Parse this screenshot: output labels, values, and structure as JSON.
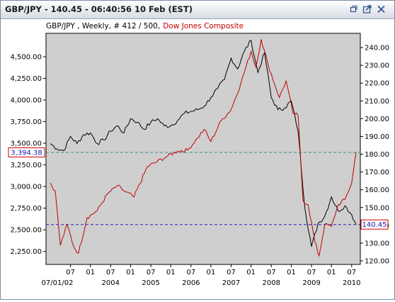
{
  "window": {
    "title": "GBP/JPY - 140.45 - 06:40:56  10 Feb (EST)",
    "buttons": [
      "restore-icon",
      "popout-icon",
      "close-icon"
    ]
  },
  "chart_data": {
    "type": "line",
    "legend": {
      "prefix": "GBP/JPY , Weekly, # 412 / 500,",
      "overlay_name": "Dow Jones Composite",
      "prefix_color": "#000000",
      "overlay_color": "#c00000"
    },
    "background": "#cfcfcf",
    "grid": false,
    "x_tick_labels": [
      "07",
      "01",
      "07",
      "01",
      "07",
      "01",
      "07",
      "01",
      "07",
      "01",
      "07",
      "01",
      "07",
      "01",
      "07",
      "01"
    ],
    "x_year_labels": [
      "07/01/02",
      "2004",
      "2005",
      "2006",
      "2007",
      "2008",
      "2009",
      "2010"
    ],
    "x_range": [
      "2002-07-01",
      "2010-02-10"
    ],
    "left_axis": {
      "series": "Dow Jones Composite",
      "ylim": [
        2100,
        4770
      ],
      "ticks": [
        "4,500.00",
        "4,250.00",
        "4,000.00",
        "3,750.00",
        "3,500.00",
        "3,250.00",
        "3,000.00",
        "2,750.00",
        "2,500.00",
        "2,250.00"
      ],
      "tick_values": [
        4500,
        4250,
        4000,
        3750,
        3500,
        3250,
        3000,
        2750,
        2500,
        2250
      ],
      "marker": "3,394.38",
      "marker_value": 3394.38
    },
    "right_axis": {
      "series": "GBP/JPY",
      "ylim": [
        118,
        248
      ],
      "ticks": [
        "240.00",
        "230.00",
        "220.00",
        "210.00",
        "200.00",
        "190.00",
        "180.00",
        "170.00",
        "160.00",
        "150.00",
        "140.00",
        "130.00",
        "120.00"
      ],
      "tick_values": [
        240,
        230,
        220,
        210,
        200,
        190,
        180,
        170,
        160,
        150,
        140,
        130,
        120
      ],
      "marker": "140.45",
      "marker_value": 140.45
    },
    "reference_lines": [
      {
        "axis": "left",
        "value": 3394.38,
        "color": "#3a8a8a",
        "style": "dashed"
      },
      {
        "axis": "right",
        "value": 140.45,
        "color": "#2020c8",
        "style": "dashed"
      }
    ],
    "series": [
      {
        "name": "GBP/JPY",
        "color": "#000000",
        "axis": "right",
        "points": [
          [
            "2002-07-01",
            186
          ],
          [
            "2002-09-01",
            183
          ],
          [
            "2002-11-01",
            182
          ],
          [
            "2003-01-01",
            190
          ],
          [
            "2003-03-01",
            186
          ],
          [
            "2003-05-01",
            191
          ],
          [
            "2003-07-01",
            192
          ],
          [
            "2003-09-01",
            186
          ],
          [
            "2003-11-01",
            188
          ],
          [
            "2004-01-01",
            193
          ],
          [
            "2004-03-01",
            196
          ],
          [
            "2004-05-01",
            192
          ],
          [
            "2004-07-01",
            200
          ],
          [
            "2004-09-01",
            198
          ],
          [
            "2004-11-01",
            194
          ],
          [
            "2005-01-01",
            198
          ],
          [
            "2005-03-01",
            200
          ],
          [
            "2005-05-01",
            196
          ],
          [
            "2005-07-01",
            196
          ],
          [
            "2005-09-01",
            199
          ],
          [
            "2005-11-01",
            203
          ],
          [
            "2006-01-01",
            204
          ],
          [
            "2006-03-01",
            205
          ],
          [
            "2006-05-01",
            207
          ],
          [
            "2006-07-01",
            212
          ],
          [
            "2006-09-01",
            217
          ],
          [
            "2006-11-01",
            222
          ],
          [
            "2007-01-01",
            234
          ],
          [
            "2007-03-01",
            228
          ],
          [
            "2007-05-01",
            238
          ],
          [
            "2007-07-01",
            244
          ],
          [
            "2007-09-01",
            226
          ],
          [
            "2007-11-01",
            237
          ],
          [
            "2008-01-01",
            212
          ],
          [
            "2008-03-01",
            205
          ],
          [
            "2008-05-01",
            206
          ],
          [
            "2008-07-01",
            210
          ],
          [
            "2008-09-01",
            193
          ],
          [
            "2008-11-01",
            150
          ],
          [
            "2009-01-01",
            128
          ],
          [
            "2009-03-01",
            141
          ],
          [
            "2009-05-01",
            145
          ],
          [
            "2009-07-01",
            156
          ],
          [
            "2009-09-01",
            148
          ],
          [
            "2009-11-01",
            151
          ],
          [
            "2010-01-01",
            146
          ],
          [
            "2010-02-10",
            140.45
          ]
        ]
      },
      {
        "name": "Dow Jones Composite",
        "color": "#c00000",
        "axis": "left",
        "points": [
          [
            "2002-07-01",
            3040
          ],
          [
            "2002-08-15",
            2950
          ],
          [
            "2002-10-01",
            2320
          ],
          [
            "2002-12-01",
            2560
          ],
          [
            "2003-02-01",
            2300
          ],
          [
            "2003-03-15",
            2230
          ],
          [
            "2003-06-01",
            2640
          ],
          [
            "2003-09-01",
            2720
          ],
          [
            "2003-12-01",
            2910
          ],
          [
            "2004-03-01",
            3010
          ],
          [
            "2004-05-01",
            2950
          ],
          [
            "2004-08-01",
            2880
          ],
          [
            "2004-12-01",
            3230
          ],
          [
            "2005-03-01",
            3290
          ],
          [
            "2005-06-01",
            3350
          ],
          [
            "2005-09-01",
            3410
          ],
          [
            "2005-12-01",
            3420
          ],
          [
            "2006-03-01",
            3560
          ],
          [
            "2006-05-01",
            3660
          ],
          [
            "2006-07-01",
            3520
          ],
          [
            "2006-10-01",
            3760
          ],
          [
            "2007-01-01",
            3890
          ],
          [
            "2007-04-01",
            4200
          ],
          [
            "2007-07-01",
            4560
          ],
          [
            "2007-08-15",
            4380
          ],
          [
            "2007-10-01",
            4700
          ],
          [
            "2007-12-01",
            4420
          ],
          [
            "2008-02-01",
            4180
          ],
          [
            "2008-03-15",
            4030
          ],
          [
            "2008-05-15",
            4220
          ],
          [
            "2008-07-15",
            3850
          ],
          [
            "2008-09-01",
            3820
          ],
          [
            "2008-10-15",
            2840
          ],
          [
            "2008-12-01",
            2790
          ],
          [
            "2009-02-01",
            2360
          ],
          [
            "2009-03-10",
            2200
          ],
          [
            "2009-05-01",
            2560
          ],
          [
            "2009-07-01",
            2540
          ],
          [
            "2009-09-01",
            2790
          ],
          [
            "2009-11-01",
            2850
          ],
          [
            "2010-01-01",
            3040
          ],
          [
            "2010-02-10",
            3394.38
          ]
        ]
      }
    ]
  }
}
